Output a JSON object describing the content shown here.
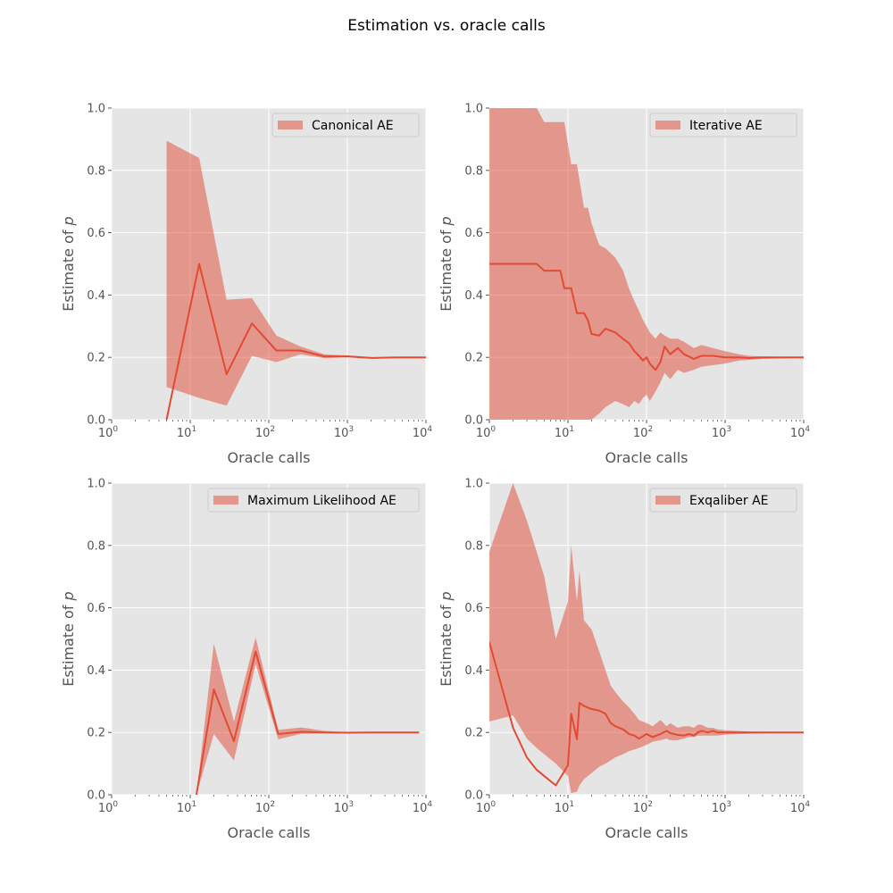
{
  "title": "Estimation vs. oracle calls",
  "chart_data": [
    {
      "type": "line",
      "series": [
        {
          "name": "Canonical AE"
        }
      ],
      "xlabel": "Oracle calls",
      "ylabel": "Estimate of ",
      "ylabel_var": "p",
      "xscale": "log",
      "xlim": [
        1,
        10000
      ],
      "ylim": [
        0,
        1
      ],
      "yticks": [
        "0.0",
        "0.2",
        "0.4",
        "0.6",
        "0.8",
        "1.0"
      ],
      "xticks": [
        {
          "base": "10",
          "exp": "0"
        },
        {
          "base": "10",
          "exp": "1"
        },
        {
          "base": "10",
          "exp": "2"
        },
        {
          "base": "10",
          "exp": "3"
        },
        {
          "base": "10",
          "exp": "4"
        }
      ],
      "grid": true,
      "legend": "top-right",
      "x": [
        5,
        13,
        29,
        61,
        125,
        253,
        509,
        1021,
        2045,
        4093,
        8189,
        10000
      ],
      "y": [
        0.0,
        0.5,
        0.146,
        0.309,
        0.222,
        0.222,
        0.203,
        0.203,
        0.198,
        0.2,
        0.2,
        0.2
      ],
      "lower": [
        0.105,
        0.07,
        0.045,
        0.205,
        0.185,
        0.21,
        0.197,
        0.2,
        0.197,
        0.199,
        0.199,
        0.199
      ],
      "upper": [
        0.895,
        0.84,
        0.385,
        0.39,
        0.27,
        0.235,
        0.21,
        0.206,
        0.201,
        0.201,
        0.201,
        0.201
      ],
      "colors": {
        "line": "#e24a33",
        "band": "#e24a33"
      }
    },
    {
      "type": "line",
      "series": [
        {
          "name": "Iterative AE"
        }
      ],
      "xlabel": "Oracle calls",
      "ylabel": "Estimate of ",
      "ylabel_var": "p",
      "xscale": "log",
      "xlim": [
        1,
        10000
      ],
      "ylim": [
        0,
        1
      ],
      "yticks": [
        "0.0",
        "0.2",
        "0.4",
        "0.6",
        "0.8",
        "1.0"
      ],
      "xticks": [
        {
          "base": "10",
          "exp": "0"
        },
        {
          "base": "10",
          "exp": "1"
        },
        {
          "base": "10",
          "exp": "2"
        },
        {
          "base": "10",
          "exp": "3"
        },
        {
          "base": "10",
          "exp": "4"
        }
      ],
      "grid": true,
      "legend": "top-right",
      "x": [
        1,
        2,
        4,
        5,
        6,
        8,
        9,
        11,
        13,
        16,
        18,
        20,
        25,
        30,
        40,
        50,
        60,
        70,
        80,
        90,
        100,
        110,
        130,
        150,
        170,
        200,
        250,
        300,
        400,
        500,
        700,
        1000,
        1500,
        2000,
        3000,
        5000,
        10000
      ],
      "y": [
        0.5,
        0.5,
        0.5,
        0.478,
        0.478,
        0.478,
        0.422,
        0.422,
        0.342,
        0.342,
        0.318,
        0.275,
        0.27,
        0.292,
        0.28,
        0.26,
        0.245,
        0.22,
        0.205,
        0.19,
        0.2,
        0.18,
        0.16,
        0.185,
        0.235,
        0.21,
        0.23,
        0.21,
        0.195,
        0.205,
        0.205,
        0.2,
        0.2,
        0.198,
        0.2,
        0.2,
        0.2
      ],
      "lower": [
        0.0,
        0.0,
        0.0,
        0.0,
        0.0,
        0.0,
        0.0,
        0.0,
        0.0,
        0.0,
        0.0,
        0.0,
        0.02,
        0.04,
        0.06,
        0.05,
        0.04,
        0.06,
        0.05,
        0.07,
        0.08,
        0.06,
        0.09,
        0.12,
        0.15,
        0.13,
        0.16,
        0.15,
        0.16,
        0.17,
        0.175,
        0.18,
        0.19,
        0.192,
        0.195,
        0.197,
        0.198
      ],
      "upper": [
        1.0,
        1.0,
        1.0,
        0.955,
        0.955,
        0.955,
        0.955,
        0.82,
        0.82,
        0.68,
        0.68,
        0.63,
        0.56,
        0.55,
        0.52,
        0.48,
        0.42,
        0.38,
        0.35,
        0.32,
        0.3,
        0.28,
        0.26,
        0.28,
        0.27,
        0.26,
        0.26,
        0.25,
        0.23,
        0.24,
        0.23,
        0.22,
        0.21,
        0.205,
        0.203,
        0.202,
        0.202
      ],
      "colors": {
        "line": "#e24a33",
        "band": "#e24a33"
      }
    },
    {
      "type": "line",
      "series": [
        {
          "name": "Maximum Likelihood AE"
        }
      ],
      "xlabel": "Oracle calls",
      "ylabel": "Estimate of ",
      "ylabel_var": "p",
      "xscale": "log",
      "xlim": [
        1,
        10000
      ],
      "ylim": [
        0,
        1
      ],
      "yticks": [
        "0.0",
        "0.2",
        "0.4",
        "0.6",
        "0.8",
        "1.0"
      ],
      "xticks": [
        {
          "base": "10",
          "exp": "0"
        },
        {
          "base": "10",
          "exp": "1"
        },
        {
          "base": "10",
          "exp": "2"
        },
        {
          "base": "10",
          "exp": "3"
        },
        {
          "base": "10",
          "exp": "4"
        }
      ],
      "grid": true,
      "legend": "top-right",
      "x": [
        12,
        20,
        36,
        68,
        132,
        260,
        516,
        1028,
        2052,
        4100,
        8196
      ],
      "y": [
        0.0,
        0.338,
        0.172,
        0.46,
        0.195,
        0.202,
        0.2,
        0.199,
        0.2,
        0.2,
        0.2
      ],
      "lower": [
        0.0,
        0.195,
        0.11,
        0.42,
        0.178,
        0.196,
        0.197,
        0.198,
        0.199,
        0.199,
        0.199
      ],
      "upper": [
        0.0,
        0.485,
        0.235,
        0.505,
        0.208,
        0.216,
        0.205,
        0.201,
        0.201,
        0.201,
        0.201
      ],
      "colors": {
        "line": "#e24a33",
        "band": "#e24a33"
      }
    },
    {
      "type": "line",
      "series": [
        {
          "name": "Exqaliber AE"
        }
      ],
      "xlabel": "Oracle calls",
      "ylabel": "Estimate of ",
      "ylabel_var": "p",
      "xscale": "log",
      "xlim": [
        1,
        10000
      ],
      "ylim": [
        0,
        1
      ],
      "yticks": [
        "0.0",
        "0.2",
        "0.4",
        "0.6",
        "0.8",
        "1.0"
      ],
      "xticks": [
        {
          "base": "10",
          "exp": "0"
        },
        {
          "base": "10",
          "exp": "1"
        },
        {
          "base": "10",
          "exp": "2"
        },
        {
          "base": "10",
          "exp": "3"
        },
        {
          "base": "10",
          "exp": "4"
        }
      ],
      "grid": true,
      "legend": "top-right",
      "x": [
        1,
        2,
        3,
        4,
        5,
        7,
        10,
        11,
        13,
        14,
        16,
        20,
        25,
        30,
        35,
        40,
        50,
        60,
        70,
        80,
        100,
        120,
        150,
        180,
        200,
        250,
        300,
        350,
        400,
        450,
        500,
        600,
        700,
        800,
        1000,
        2000,
        5000,
        10000
      ],
      "y": [
        0.49,
        0.215,
        0.12,
        0.08,
        0.06,
        0.03,
        0.095,
        0.26,
        0.178,
        0.295,
        0.285,
        0.275,
        0.27,
        0.26,
        0.23,
        0.22,
        0.21,
        0.195,
        0.19,
        0.18,
        0.195,
        0.185,
        0.195,
        0.205,
        0.198,
        0.192,
        0.19,
        0.195,
        0.19,
        0.2,
        0.205,
        0.2,
        0.205,
        0.2,
        0.2,
        0.2,
        0.2,
        0.2
      ],
      "lower": [
        0.235,
        0.255,
        0.18,
        0.15,
        0.13,
        0.1,
        0.06,
        0.005,
        0.01,
        0.03,
        0.05,
        0.07,
        0.09,
        0.1,
        0.11,
        0.12,
        0.13,
        0.14,
        0.145,
        0.15,
        0.16,
        0.17,
        0.175,
        0.18,
        0.175,
        0.175,
        0.18,
        0.185,
        0.185,
        0.19,
        0.19,
        0.19,
        0.19,
        0.19,
        0.193,
        0.196,
        0.198,
        0.199
      ],
      "upper": [
        0.78,
        1.0,
        0.88,
        0.78,
        0.7,
        0.5,
        0.62,
        0.8,
        0.62,
        0.72,
        0.56,
        0.53,
        0.46,
        0.4,
        0.35,
        0.33,
        0.3,
        0.28,
        0.26,
        0.24,
        0.23,
        0.22,
        0.24,
        0.22,
        0.23,
        0.215,
        0.22,
        0.22,
        0.215,
        0.225,
        0.225,
        0.215,
        0.215,
        0.21,
        0.207,
        0.203,
        0.201,
        0.201
      ],
      "colors": {
        "line": "#e24a33",
        "band": "#e24a33"
      }
    }
  ]
}
